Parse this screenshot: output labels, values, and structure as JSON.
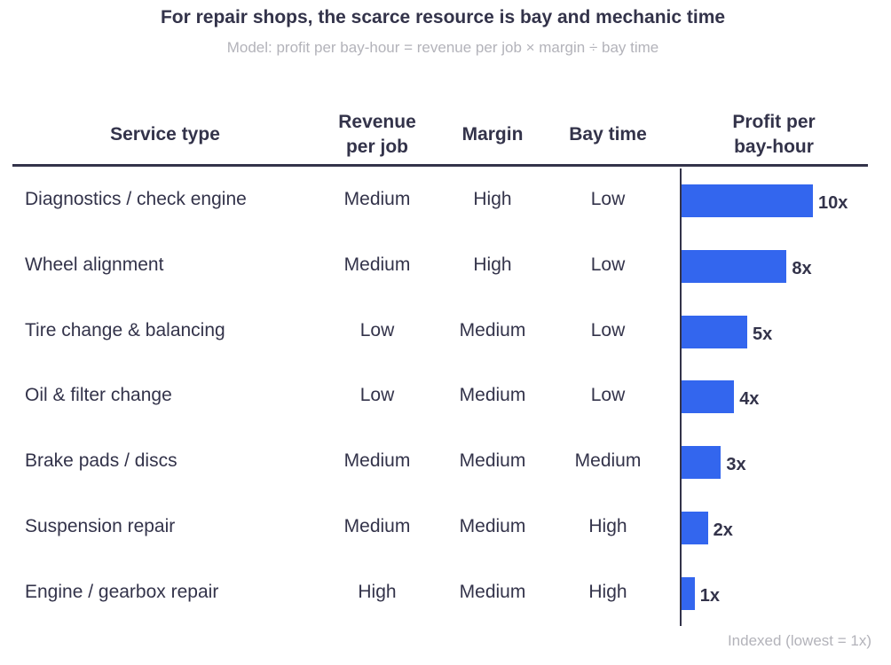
{
  "title": "For repair shops, the scarce resource is bay and mechanic time",
  "subtitle": "Model: profit per bay-hour = revenue per job × margin ÷ bay time",
  "headers": {
    "service": "Service type",
    "revenue": [
      "Revenue",
      "per job"
    ],
    "margin": "Margin",
    "bay_time": "Bay time",
    "profit": [
      "Profit per",
      "bay-hour"
    ]
  },
  "rows": [
    {
      "service": "Diagnostics / check engine",
      "revenue": "Medium",
      "margin": "High",
      "bay_time": "Low",
      "profit_label": "10x"
    },
    {
      "service": "Wheel alignment",
      "revenue": "Medium",
      "margin": "High",
      "bay_time": "Low",
      "profit_label": "8x"
    },
    {
      "service": "Tire change & balancing",
      "revenue": "Low",
      "margin": "Medium",
      "bay_time": "Low",
      "profit_label": "5x"
    },
    {
      "service": "Oil & filter change",
      "revenue": "Low",
      "margin": "Medium",
      "bay_time": "Low",
      "profit_label": "4x"
    },
    {
      "service": "Brake pads / discs",
      "revenue": "Medium",
      "margin": "Medium",
      "bay_time": "Medium",
      "profit_label": "3x"
    },
    {
      "service": "Suspension repair",
      "revenue": "Medium",
      "margin": "Medium",
      "bay_time": "High",
      "profit_label": "2x"
    },
    {
      "service": "Engine / gearbox repair",
      "revenue": "High",
      "margin": "Medium",
      "bay_time": "High",
      "profit_label": "1x"
    }
  ],
  "footnote": "Indexed (lowest = 1x)",
  "colors": {
    "bar": "#3366ee",
    "text": "#33334a",
    "muted": "#b3b3ba"
  },
  "chart_data": {
    "type": "bar",
    "orientation": "horizontal",
    "categories": [
      "Diagnostics / check engine",
      "Wheel alignment",
      "Tire change & balancing",
      "Oil & filter change",
      "Brake pads / discs",
      "Suspension repair",
      "Engine / gearbox repair"
    ],
    "values": [
      10,
      8,
      5,
      4,
      3,
      2,
      1
    ],
    "data_labels": [
      "10x",
      "8x",
      "5x",
      "4x",
      "3x",
      "2x",
      "1x"
    ],
    "title": "Profit per bay-hour",
    "xlim": [
      0,
      10
    ],
    "grid": false
  }
}
